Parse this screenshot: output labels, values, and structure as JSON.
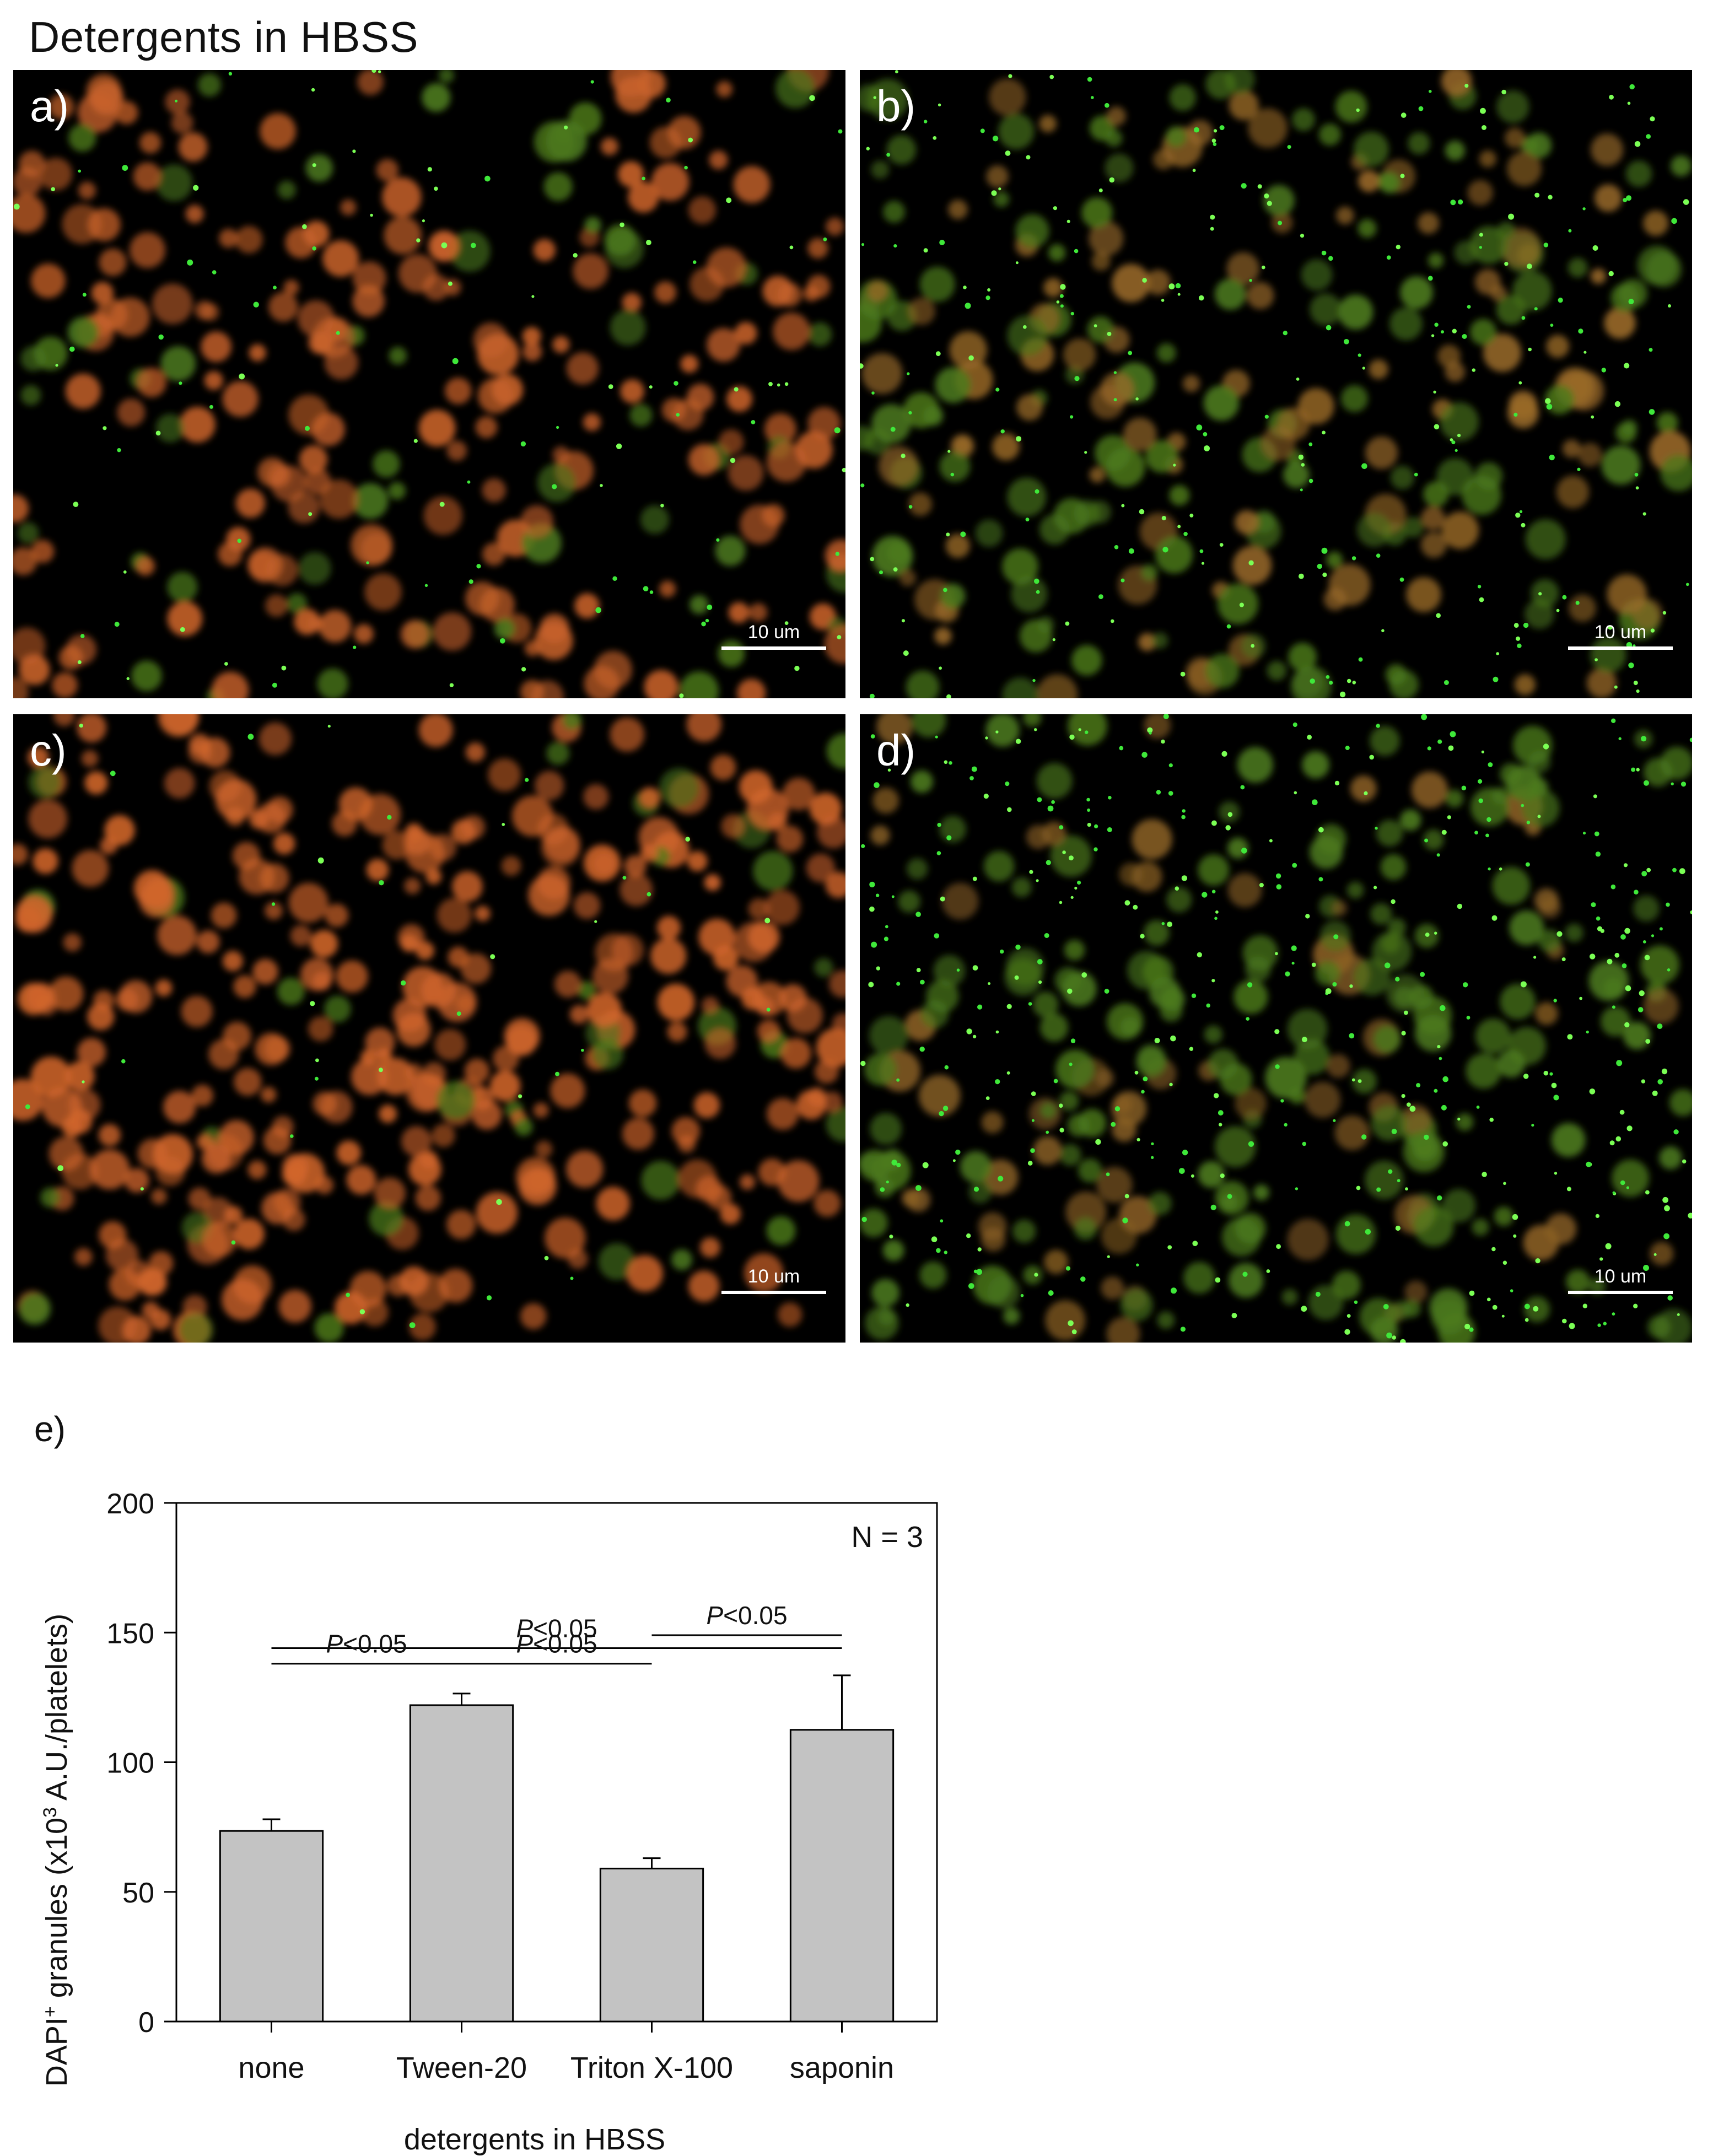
{
  "figure": {
    "title": "Detergents in HBSS",
    "panels": [
      {
        "letter": "a)",
        "scale_bar": "10 um",
        "green_density": "low",
        "cell_color": "#c8622a"
      },
      {
        "letter": "b)",
        "scale_bar": "10 um",
        "green_density": "high",
        "cell_color": "#9a6a28"
      },
      {
        "letter": "c)",
        "scale_bar": "10 um",
        "green_density": "very-low",
        "cell_color": "#d0652b"
      },
      {
        "letter": "d)",
        "scale_bar": "10 um",
        "green_density": "very-high",
        "cell_color": "#8a6024"
      }
    ]
  },
  "chart_data": {
    "type": "bar",
    "panel_letter": "e)",
    "categories": [
      "none",
      "Tween-20",
      "Triton X-100",
      "saponin"
    ],
    "values": [
      73.5,
      122,
      59,
      112.5
    ],
    "error_upper": [
      78,
      126.5,
      63,
      133.5
    ],
    "ylim": [
      0,
      200
    ],
    "yticks": [
      0,
      50,
      100,
      150,
      200
    ],
    "xlabel": "detergents in HBSS",
    "ylabel": {
      "part1": "DAPI",
      "sup1": "+",
      "part2": " granules (x10",
      "sup2": "3",
      "part3": " A.U./platelets)"
    },
    "annotation": "N = 3",
    "significance": [
      {
        "from": 0,
        "to": 3,
        "level": 144,
        "label": "P<0.05"
      },
      {
        "from": 0,
        "to": 1,
        "level": 138,
        "label": "P<0.05"
      },
      {
        "from": 1,
        "to": 2,
        "level": 138,
        "label": "P<0.05"
      },
      {
        "from": 2,
        "to": 3,
        "level": 149,
        "label": "P<0.05"
      }
    ],
    "bar_color": "#c3c3c3",
    "grid": false
  }
}
